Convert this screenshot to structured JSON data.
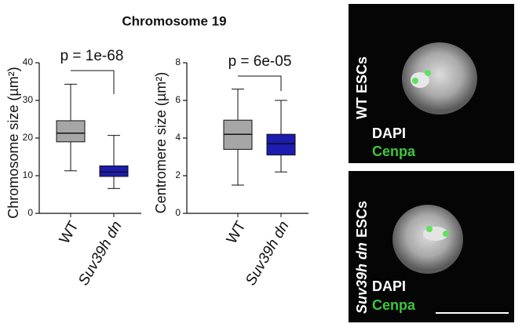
{
  "title": "Chromosome 19",
  "chart_data": [
    {
      "type": "box",
      "ylabel": "Chromosome size (µm²)",
      "annotation": "p = 1e-68",
      "categories": [
        "WT",
        "Suv39h dn"
      ],
      "boxes": [
        {
          "min": 11.3,
          "q1": 19,
          "median": 21.3,
          "q3": 24.6,
          "max": 34.3,
          "color": "#a6a6a6"
        },
        {
          "min": 6.6,
          "q1": 9.8,
          "median": 11,
          "q3": 12.6,
          "max": 20.7,
          "color": "#1c1cb0"
        }
      ],
      "ylim": [
        0,
        40
      ],
      "yticks": [
        0,
        10,
        20,
        30,
        40
      ]
    },
    {
      "type": "box",
      "ylabel": "Centromere size (µm²)",
      "annotation": "p = 6e-05",
      "categories": [
        "WT",
        "Suv39h dn"
      ],
      "boxes": [
        {
          "min": 1.5,
          "q1": 3.4,
          "median": 4.2,
          "q3": 4.95,
          "max": 6.6,
          "color": "#a6a6a6"
        },
        {
          "min": 2.2,
          "q1": 3.1,
          "median": 3.7,
          "q3": 4.2,
          "max": 6.0,
          "color": "#1c1cb0"
        }
      ],
      "ylim": [
        0,
        8
      ],
      "yticks": [
        0,
        2,
        4,
        6,
        8
      ]
    }
  ],
  "images": [
    {
      "label": "WT ESCs",
      "channels": [
        "DAPI",
        "Cenpa"
      ]
    },
    {
      "genotype": "Suv39h dn",
      "label": "ESCs",
      "channels": [
        "DAPI",
        "Cenpa"
      ]
    }
  ]
}
